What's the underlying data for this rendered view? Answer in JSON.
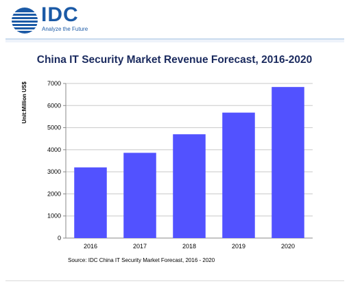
{
  "header": {
    "logo_text": "IDC",
    "tagline": "Analyze the Future",
    "brand_color": "#1b5aa6"
  },
  "chart_data": {
    "type": "bar",
    "title": "China IT Security Market Revenue Forecast, 2016-2020",
    "xlabel": "",
    "ylabel": "Unit:Million US$",
    "categories": [
      "2016",
      "2017",
      "2018",
      "2019",
      "2020"
    ],
    "values": [
      3200,
      3860,
      4700,
      5680,
      6840
    ],
    "ylim": [
      0,
      7000
    ],
    "yticks": [
      0,
      1000,
      2000,
      3000,
      4000,
      5000,
      6000,
      7000
    ],
    "grid": true,
    "legend": "none",
    "bar_color": "#5252ff",
    "source": "Source: IDC China IT Security Market Forecast, 2016 - 2020"
  }
}
